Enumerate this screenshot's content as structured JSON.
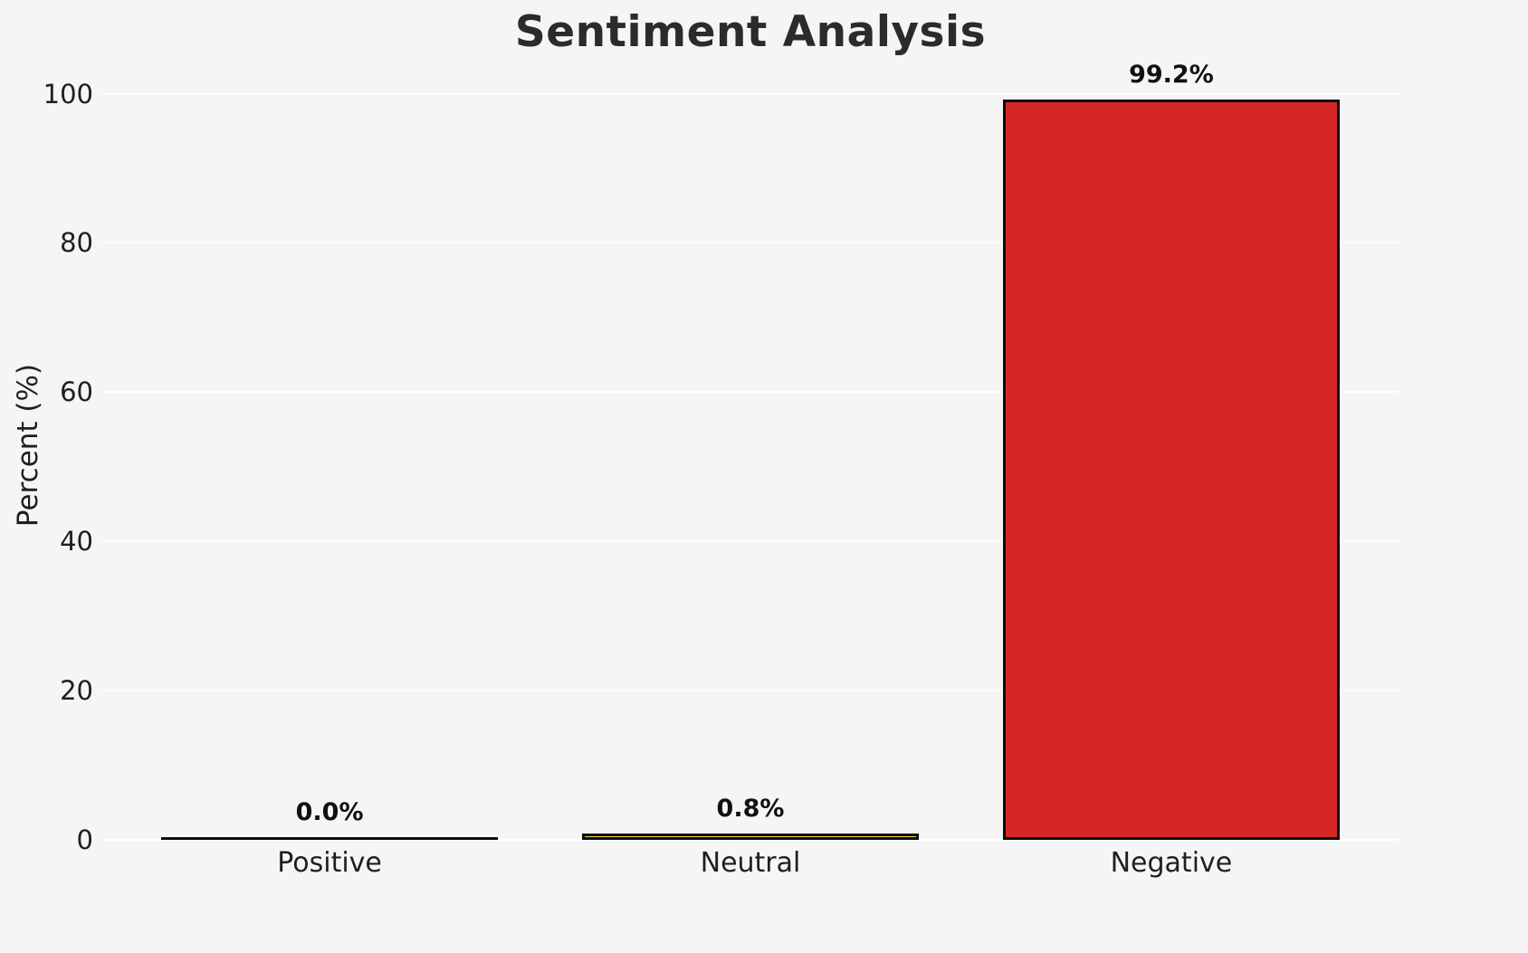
{
  "chart_data": {
    "type": "bar",
    "title": "Sentiment Analysis",
    "ylabel": "Percent (%)",
    "xlabel": "",
    "categories": [
      "Positive",
      "Neutral",
      "Negative"
    ],
    "values": [
      0.0,
      0.8,
      99.2
    ],
    "value_labels": [
      "0.0%",
      "0.8%",
      "99.2%"
    ],
    "bar_colors": [
      null,
      "#f5d63e",
      "#d62728"
    ],
    "bar_edge_color": "#0d0d0d",
    "ylim": [
      0,
      100
    ],
    "yticks": [
      0,
      20,
      40,
      60,
      80,
      100
    ],
    "grid": true,
    "grid_color": "#ffffff",
    "background_color": "#f5f5f5",
    "legend": "none"
  }
}
